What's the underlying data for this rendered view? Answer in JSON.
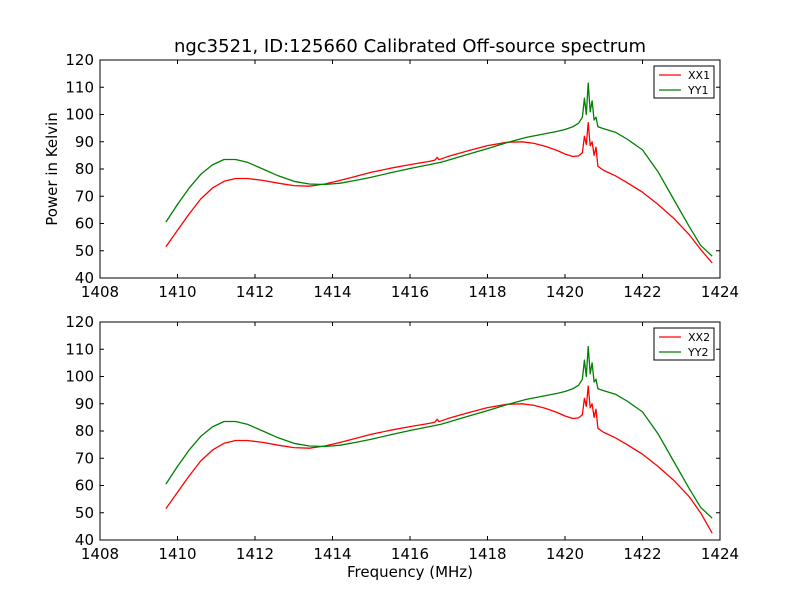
{
  "chart_data": [
    {
      "type": "line",
      "title": "ngc3521, ID:125660 Calibrated Off-source spectrum",
      "xlabel": "",
      "ylabel": "Power in Kelvin",
      "xlim": [
        1408,
        1424
      ],
      "ylim": [
        40,
        120
      ],
      "xticks": [
        "1408",
        "1410",
        "1412",
        "1414",
        "1416",
        "1418",
        "1420",
        "1422",
        "1424"
      ],
      "yticks": [
        "40",
        "50",
        "60",
        "70",
        "80",
        "90",
        "100",
        "110",
        "120"
      ],
      "grid": false,
      "legend_position": "top-right",
      "series": [
        {
          "name": "XX1",
          "color": "#ff0000",
          "x": [
            1409.7,
            1410.0,
            1410.3,
            1410.6,
            1410.9,
            1411.2,
            1411.5,
            1411.8,
            1412.2,
            1412.6,
            1413.0,
            1413.4,
            1413.8,
            1414.2,
            1414.6,
            1415.0,
            1415.5,
            1416.0,
            1416.5,
            1416.65,
            1416.7,
            1416.75,
            1417.0,
            1417.5,
            1418.0,
            1418.5,
            1418.9,
            1419.2,
            1419.5,
            1419.8,
            1420.0,
            1420.2,
            1420.35,
            1420.45,
            1420.5,
            1420.55,
            1420.6,
            1420.65,
            1420.7,
            1420.75,
            1420.8,
            1420.85,
            1421.0,
            1421.3,
            1421.6,
            1422.0,
            1422.4,
            1422.8,
            1423.2,
            1423.5,
            1423.8
          ],
          "values": [
            51.5,
            57.5,
            63.5,
            69,
            73,
            75.5,
            76.5,
            76.5,
            75.8,
            74.8,
            73.9,
            73.7,
            74.5,
            75.8,
            77.3,
            78.8,
            80.3,
            81.6,
            82.8,
            83.3,
            84.3,
            83.4,
            84.7,
            86.7,
            88.6,
            89.8,
            90,
            89.4,
            88.3,
            86.8,
            85.5,
            84.6,
            84.8,
            86,
            92,
            89,
            97,
            88.5,
            90,
            85,
            88,
            81,
            79.5,
            77.5,
            75,
            71.5,
            67,
            62,
            56,
            50.5,
            45.5
          ]
        },
        {
          "name": "YY1",
          "color": "#008000",
          "x": [
            1409.7,
            1410.0,
            1410.3,
            1410.6,
            1410.9,
            1411.2,
            1411.5,
            1411.8,
            1412.2,
            1412.6,
            1413.0,
            1413.4,
            1413.8,
            1414.2,
            1414.6,
            1415.0,
            1415.5,
            1416.0,
            1416.5,
            1416.8,
            1417.0,
            1417.5,
            1418.0,
            1418.5,
            1419.0,
            1419.5,
            1419.8,
            1420.0,
            1420.2,
            1420.35,
            1420.45,
            1420.5,
            1420.55,
            1420.6,
            1420.65,
            1420.7,
            1420.75,
            1420.8,
            1420.85,
            1421.0,
            1421.3,
            1421.6,
            1422.0,
            1422.4,
            1422.8,
            1423.2,
            1423.5,
            1423.8
          ],
          "values": [
            60.5,
            67,
            73,
            78,
            81.5,
            83.5,
            83.5,
            82.5,
            80,
            77.5,
            75.5,
            74.5,
            74.3,
            74.8,
            75.8,
            77,
            78.6,
            80.2,
            81.6,
            82.5,
            83.3,
            85.4,
            87.5,
            89.7,
            91.6,
            93,
            93.8,
            94.5,
            95.5,
            96.8,
            99,
            106,
            100,
            111.5,
            101,
            105,
            98,
            99,
            95.5,
            94.8,
            93.5,
            91,
            87,
            79,
            69,
            59,
            52,
            48
          ]
        }
      ]
    },
    {
      "type": "line",
      "title": "",
      "xlabel": "Frequency (MHz)",
      "ylabel": "",
      "xlim": [
        1408,
        1424
      ],
      "ylim": [
        40,
        120
      ],
      "xticks": [
        "1408",
        "1410",
        "1412",
        "1414",
        "1416",
        "1418",
        "1420",
        "1422",
        "1424"
      ],
      "yticks": [
        "40",
        "50",
        "60",
        "70",
        "80",
        "90",
        "100",
        "110",
        "120"
      ],
      "grid": false,
      "legend_position": "top-right",
      "series": [
        {
          "name": "XX2",
          "color": "#ff0000",
          "x": [
            1409.7,
            1410.0,
            1410.3,
            1410.6,
            1410.9,
            1411.2,
            1411.5,
            1411.8,
            1412.2,
            1412.6,
            1413.0,
            1413.4,
            1413.8,
            1414.2,
            1414.6,
            1415.0,
            1415.5,
            1416.0,
            1416.5,
            1416.65,
            1416.7,
            1416.75,
            1417.0,
            1417.5,
            1418.0,
            1418.5,
            1418.9,
            1419.2,
            1419.5,
            1419.8,
            1420.0,
            1420.2,
            1420.35,
            1420.45,
            1420.5,
            1420.55,
            1420.6,
            1420.65,
            1420.7,
            1420.75,
            1420.8,
            1420.85,
            1421.0,
            1421.3,
            1421.6,
            1422.0,
            1422.4,
            1422.8,
            1423.2,
            1423.5,
            1423.8
          ],
          "values": [
            51.5,
            57.5,
            63.5,
            69,
            73,
            75.5,
            76.5,
            76.5,
            75.8,
            74.8,
            73.9,
            73.7,
            74.5,
            75.8,
            77.3,
            78.8,
            80.3,
            81.6,
            82.8,
            83.3,
            84.3,
            83.4,
            84.7,
            86.7,
            88.6,
            89.8,
            90,
            89.4,
            88.3,
            86.8,
            85.5,
            84.6,
            84.8,
            86,
            92,
            89,
            96.5,
            88.5,
            90,
            85,
            88,
            81,
            79.5,
            77.5,
            75,
            71.5,
            67,
            62,
            56,
            50,
            42.5
          ]
        },
        {
          "name": "YY2",
          "color": "#008000",
          "x": [
            1409.7,
            1410.0,
            1410.3,
            1410.6,
            1410.9,
            1411.2,
            1411.5,
            1411.8,
            1412.2,
            1412.6,
            1413.0,
            1413.4,
            1413.8,
            1414.2,
            1414.6,
            1415.0,
            1415.5,
            1416.0,
            1416.5,
            1416.8,
            1417.0,
            1417.5,
            1418.0,
            1418.5,
            1419.0,
            1419.5,
            1419.8,
            1420.0,
            1420.2,
            1420.35,
            1420.45,
            1420.5,
            1420.55,
            1420.6,
            1420.65,
            1420.7,
            1420.75,
            1420.8,
            1420.85,
            1421.0,
            1421.3,
            1421.6,
            1422.0,
            1422.4,
            1422.8,
            1423.2,
            1423.5,
            1423.8
          ],
          "values": [
            60.5,
            67,
            73,
            78,
            81.5,
            83.5,
            83.5,
            82.5,
            80,
            77.5,
            75.5,
            74.5,
            74.3,
            74.8,
            75.8,
            77,
            78.6,
            80.2,
            81.6,
            82.5,
            83.3,
            85.4,
            87.5,
            89.7,
            91.6,
            93,
            93.8,
            94.5,
            95.5,
            96.8,
            99,
            106,
            100,
            111,
            101,
            105,
            98,
            99,
            95.5,
            94.8,
            93.5,
            91,
            87,
            79,
            69,
            59,
            52,
            48
          ]
        }
      ]
    }
  ]
}
